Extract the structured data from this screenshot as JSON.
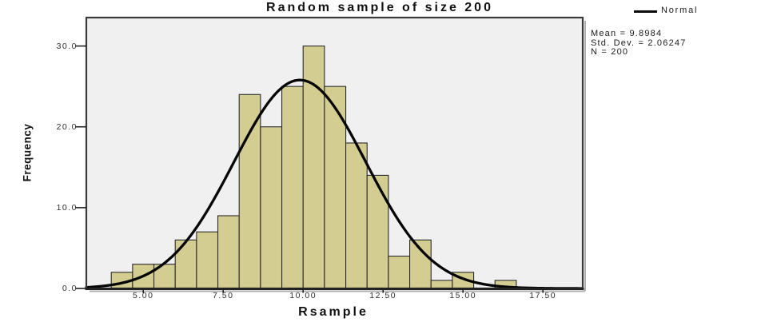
{
  "chart_data": {
    "type": "bar",
    "subtype": "histogram-with-normal-curve",
    "title": "Random sample of size 200",
    "xlabel": "Rsample",
    "ylabel": "Frequency",
    "legend_label": "Normal",
    "legend_position": "top-right",
    "annotations": {
      "mean_label": "Mean = 9.8984",
      "std_dev_label": "Std. Dev. = 2.06247",
      "n_label": "N = 200"
    },
    "bins": {
      "start": 4.0,
      "width": 0.6667
    },
    "frequencies": [
      2,
      3,
      3,
      6,
      7,
      9,
      24,
      20,
      25,
      30,
      25,
      18,
      14,
      4,
      6,
      1,
      2,
      0,
      1
    ],
    "x_ticks": {
      "values": [
        5,
        7.5,
        10,
        12.5,
        15,
        17.5
      ],
      "labels": [
        "5.00",
        "7.50",
        "10.00",
        "12.50",
        "15.00",
        "17.50"
      ]
    },
    "y_ticks": {
      "values": [
        0,
        10,
        20,
        30
      ],
      "labels": [
        "0.0",
        "10.0",
        "20.0",
        "30.0"
      ]
    },
    "x_range": [
      3.22,
      18.745
    ],
    "y_max": 33.52,
    "grid": false,
    "normal_curve": {
      "mean": 9.8984,
      "std_dev": 2.06247,
      "n": 200,
      "peak_height": 25.79
    },
    "colors": {
      "bar_fill": "#d3cd92",
      "bar_border": "#2a2a2a",
      "curve": "#050505",
      "plot_background": "#f0f0f0",
      "frame": "#3a3a3a",
      "shadow": "#b0b0b0"
    }
  }
}
